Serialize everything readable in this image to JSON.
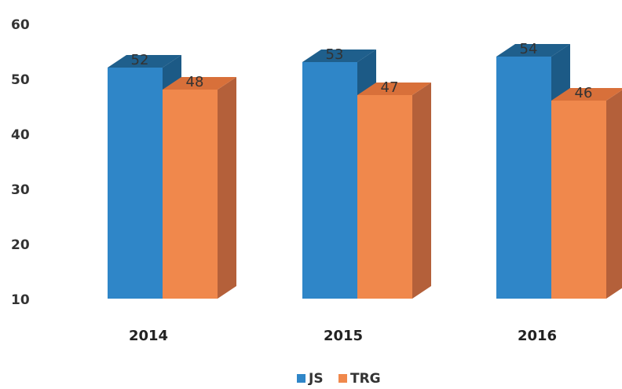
{
  "chart_data": {
    "type": "bar",
    "three_d": true,
    "categories": [
      "2014",
      "2015",
      "2016"
    ],
    "series": [
      {
        "name": "JS",
        "values": [
          52,
          53,
          54
        ],
        "color": "#2f86c8",
        "top_color": "#1f5f8c",
        "side_color": "#1c5a86"
      },
      {
        "name": "TRG",
        "values": [
          48,
          47,
          46
        ],
        "color": "#f0884c",
        "top_color": "#d8703a",
        "side_color": "#b4603a"
      }
    ],
    "ylim": [
      10,
      60
    ],
    "yticks": [
      "10",
      "20",
      "30",
      "40",
      "50",
      "60"
    ],
    "data_labels": true,
    "grid": false,
    "legend_position": "bottom",
    "title": "",
    "xlabel": "",
    "ylabel": ""
  }
}
